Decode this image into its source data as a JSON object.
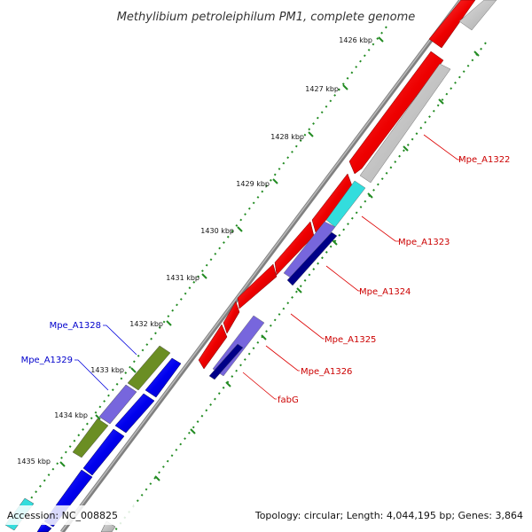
{
  "title": "Methylibium petroleiphilum PM1, complete genome",
  "footer": {
    "accession": "Accession: NC_008825",
    "summary": "Topology: circular; Length: 4,044,195 bp; Genes: 3,864"
  },
  "ticks": [
    "1426 kbp",
    "1427 kbp",
    "1428 kbp",
    "1429 kbp",
    "1430 kbp",
    "1431 kbp",
    "1432 kbp",
    "1433 kbp",
    "1434 kbp",
    "1435 kbp"
  ],
  "labels": {
    "mpe_a1322": "Mpe_A1322",
    "mpe_a1323": "Mpe_A1323",
    "mpe_a1324": "Mpe_A1324",
    "mpe_a1325": "Mpe_A1325",
    "mpe_a1326": "Mpe_A1326",
    "fabg": "fabG",
    "mpe_a1328": "Mpe_A1328",
    "mpe_a1329": "Mpe_A1329"
  },
  "colors": {
    "backbone": "#808080",
    "forward_cds": "#ee0000",
    "reverse_cds": "#0000ee",
    "gray_feature": "#bbbbbb",
    "cyan_feature": "#33dddd",
    "purple_feature": "#7766dd",
    "navy_feature": "#000088",
    "olive_feature": "#6b8e23",
    "tick_mark": "#228b22",
    "forward_label": "#cc0000",
    "reverse_label": "#0000cc"
  }
}
